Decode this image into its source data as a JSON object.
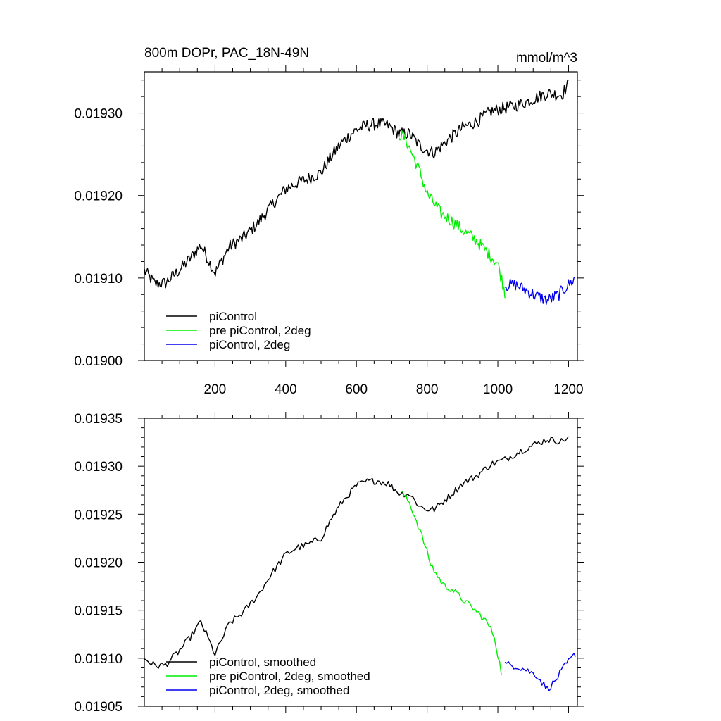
{
  "chart_data": [
    {
      "type": "line",
      "title": "800m DOPr, PAC_18N-49N",
      "units": "mmol/m^3",
      "xlim": [
        0,
        1225
      ],
      "ylim": [
        0.019,
        0.01935
      ],
      "xticks": [
        200,
        400,
        600,
        800,
        1000,
        1200
      ],
      "xtick_labels": [
        "200",
        "400",
        "600",
        "800",
        "1000",
        "1200"
      ],
      "yticks": [
        0.019,
        0.0191,
        0.0192,
        0.0193
      ],
      "ytick_labels": [
        "0.01900",
        "0.01910",
        "0.01920",
        "0.01930"
      ],
      "legend_position": "lower-left",
      "series": [
        {
          "name": "piControl",
          "color": "#000000",
          "x": [
            0,
            30,
            60,
            100,
            130,
            160,
            200,
            240,
            280,
            320,
            360,
            400,
            430,
            460,
            500,
            530,
            560,
            600,
            630,
            660,
            690,
            720,
            750,
            780,
            800,
            820,
            860,
            900,
            940,
            980,
            1020,
            1060,
            1100,
            1140,
            1180,
            1200
          ],
          "y": [
            0.019109,
            0.019093,
            0.019094,
            0.01911,
            0.019124,
            0.01914,
            0.019106,
            0.019138,
            0.019149,
            0.019166,
            0.019188,
            0.019208,
            0.019215,
            0.01922,
            0.019228,
            0.019248,
            0.019265,
            0.01928,
            0.019285,
            0.019287,
            0.019285,
            0.019275,
            0.019275,
            0.01926,
            0.019255,
            0.019252,
            0.019268,
            0.019282,
            0.01929,
            0.019302,
            0.019306,
            0.01931,
            0.019317,
            0.019324,
            0.019322,
            0.019335
          ]
        },
        {
          "name": "pre piControl, 2deg",
          "color": "#00ee00",
          "x": [
            720,
            740,
            760,
            780,
            800,
            820,
            840,
            860,
            880,
            900,
            920,
            940,
            960,
            980,
            1000,
            1020
          ],
          "y": [
            0.019275,
            0.019268,
            0.019248,
            0.019228,
            0.019202,
            0.01919,
            0.019178,
            0.019172,
            0.019166,
            0.019158,
            0.019152,
            0.019145,
            0.019136,
            0.019127,
            0.019117,
            0.019083
          ]
        },
        {
          "name": "piControl, 2deg",
          "color": "#0000ee",
          "x": [
            1020,
            1050,
            1080,
            1110,
            1140,
            1170,
            1200,
            1220
          ],
          "y": [
            0.019091,
            0.019092,
            0.019085,
            0.019078,
            0.019073,
            0.019079,
            0.019092,
            0.0191
          ]
        }
      ]
    },
    {
      "type": "line",
      "title": "",
      "xlim": [
        0,
        1225
      ],
      "ylim": [
        0.01905,
        0.01935
      ],
      "xticks": [
        200,
        400,
        600,
        800,
        1000,
        1200
      ],
      "xtick_labels": [
        "",
        "",
        "",
        "",
        "",
        ""
      ],
      "yticks": [
        0.01905,
        0.0191,
        0.01915,
        0.0192,
        0.01925,
        0.0193,
        0.01935
      ],
      "ytick_labels": [
        "0.01905",
        "0.01910",
        "0.01915",
        "0.01920",
        "0.01925",
        "0.01930",
        "0.01935"
      ],
      "legend_position": "lower-left",
      "series": [
        {
          "name": "piControl, smoothed",
          "color": "#000000",
          "x": [
            0,
            30,
            60,
            100,
            130,
            160,
            200,
            240,
            280,
            320,
            360,
            400,
            430,
            460,
            500,
            530,
            560,
            600,
            630,
            660,
            690,
            720,
            750,
            780,
            800,
            820,
            860,
            900,
            940,
            980,
            1020,
            1060,
            1100,
            1140,
            1180,
            1200
          ],
          "y": [
            0.0191,
            0.019092,
            0.019093,
            0.019108,
            0.019122,
            0.019138,
            0.019104,
            0.019136,
            0.019148,
            0.019165,
            0.019188,
            0.019208,
            0.019215,
            0.019218,
            0.019225,
            0.019246,
            0.019263,
            0.01928,
            0.019284,
            0.019285,
            0.019282,
            0.019272,
            0.019271,
            0.019258,
            0.019255,
            0.019255,
            0.019268,
            0.019282,
            0.01929,
            0.019302,
            0.019307,
            0.019315,
            0.019322,
            0.019328,
            0.019326,
            0.01933
          ]
        },
        {
          "name": "pre piControl, 2deg, smoothed",
          "color": "#00ee00",
          "x": [
            730,
            750,
            770,
            790,
            810,
            830,
            850,
            870,
            890,
            910,
            930,
            950,
            970,
            990,
            1010
          ],
          "y": [
            0.019272,
            0.019262,
            0.019243,
            0.019222,
            0.019198,
            0.019185,
            0.019175,
            0.019172,
            0.019165,
            0.019158,
            0.019152,
            0.019145,
            0.019137,
            0.019123,
            0.019085
          ]
        },
        {
          "name": "piControl, 2deg, smoothed",
          "color": "#0000ee",
          "x": [
            1020,
            1050,
            1080,
            1110,
            1140,
            1160,
            1190,
            1220
          ],
          "y": [
            0.019094,
            0.019092,
            0.019088,
            0.019082,
            0.019068,
            0.019075,
            0.019092,
            0.019105
          ]
        }
      ]
    }
  ]
}
